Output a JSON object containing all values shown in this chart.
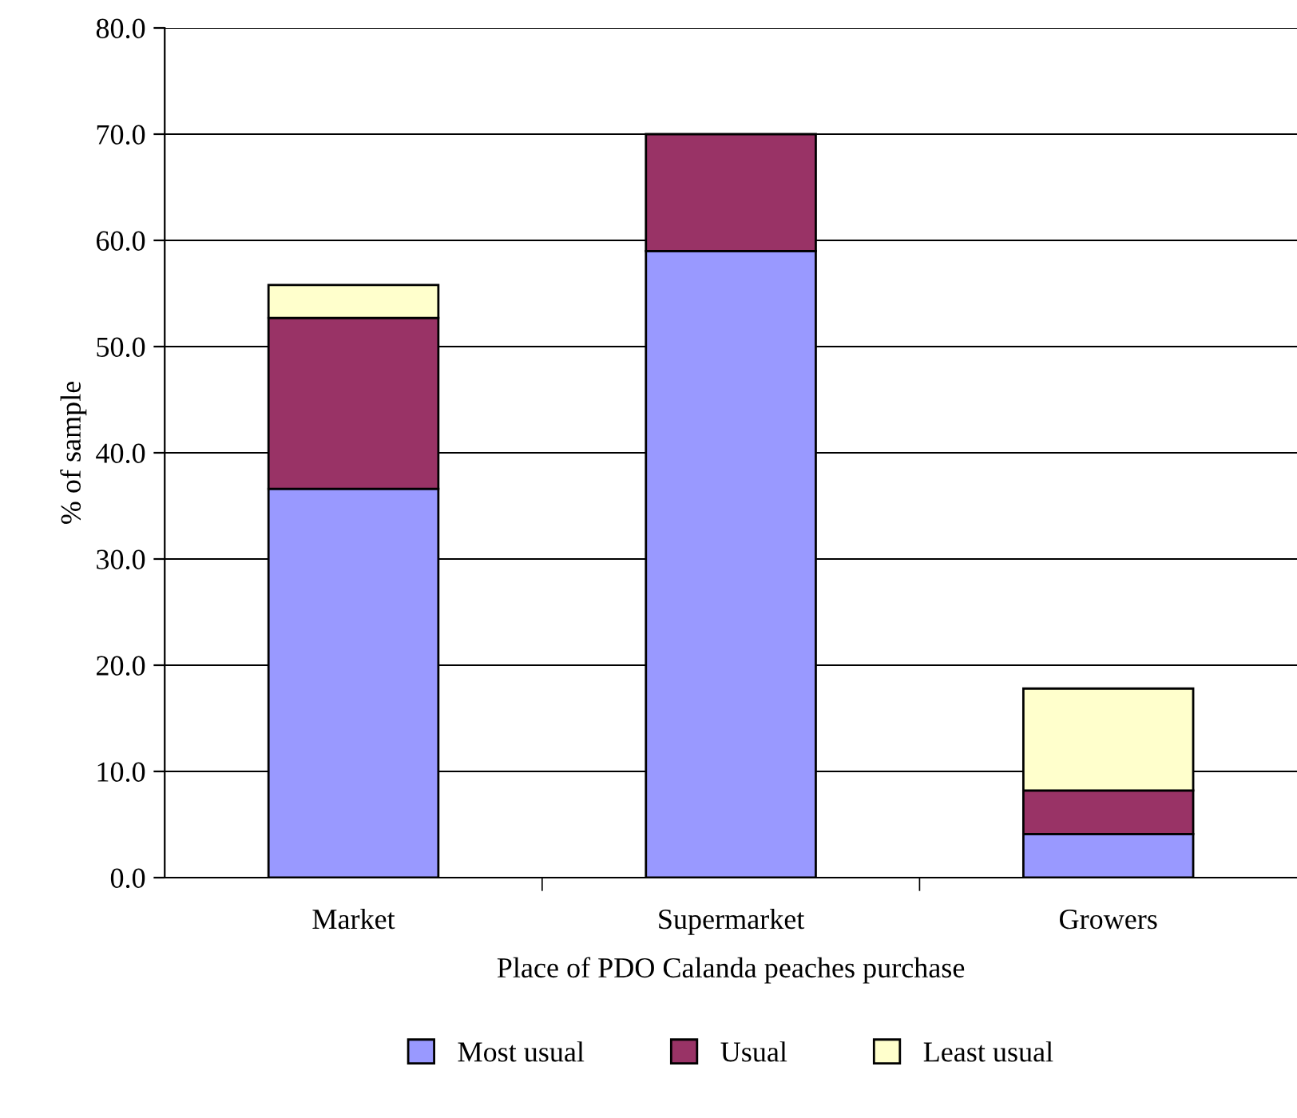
{
  "chart_data": {
    "type": "bar",
    "stacked": true,
    "xlabel": "Place of PDO Calanda peaches purchase",
    "ylabel": "% of sample",
    "categories": [
      "Market",
      "Supermarket",
      "Growers"
    ],
    "series": [
      {
        "name": "Most usual",
        "color": "#9999ff",
        "values": [
          36.6,
          59.0,
          4.1
        ]
      },
      {
        "name": "Usual",
        "color": "#993366",
        "values": [
          16.1,
          11.0,
          4.1
        ]
      },
      {
        "name": "Least usual",
        "color": "#ffffcc",
        "values": [
          3.1,
          null,
          9.6
        ]
      }
    ],
    "ylim": [
      0,
      80
    ],
    "yticks": [
      {
        "value": 0,
        "label": "0.0"
      },
      {
        "value": 10,
        "label": "10.0"
      },
      {
        "value": 20,
        "label": "20.0"
      },
      {
        "value": 30,
        "label": "30.0"
      },
      {
        "value": 40,
        "label": "40.0"
      },
      {
        "value": 50,
        "label": "50.0"
      },
      {
        "value": 60,
        "label": "60.0"
      },
      {
        "value": 70,
        "label": "70.0"
      },
      {
        "value": 80,
        "label": "80.0"
      }
    ],
    "grid": "y",
    "legend": "bottom"
  }
}
